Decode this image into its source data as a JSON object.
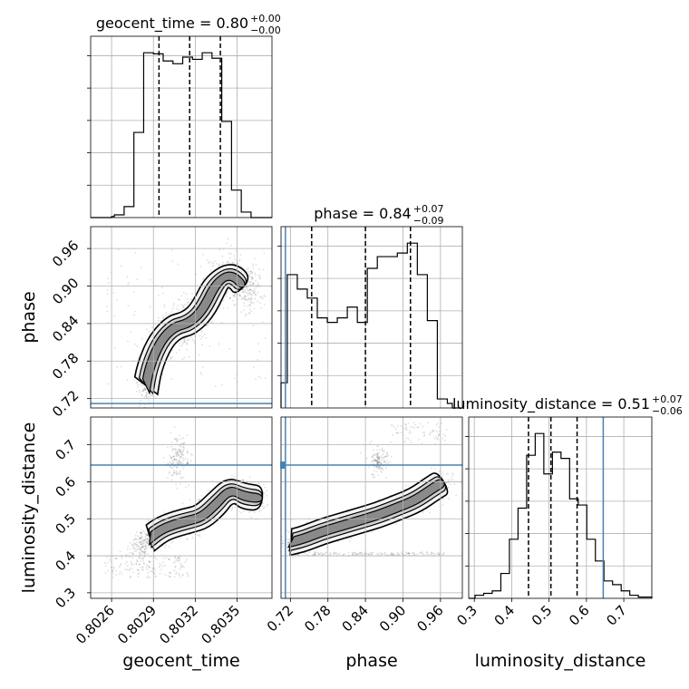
{
  "chart_data": {
    "type": "corner",
    "parameters": [
      "geocent_time",
      "phase",
      "luminosity_distance"
    ],
    "axis_labels": [
      "geocent_time",
      "phase",
      "luminosity_distance"
    ],
    "ranges": {
      "geocent_time": [
        0.80245,
        0.80375
      ],
      "phase": [
        0.705,
        0.995
      ],
      "luminosity_distance": [
        0.285,
        0.775
      ]
    },
    "ticks": {
      "geocent_time": [
        "0.8026",
        "0.8029",
        "0.8032",
        "0.8035"
      ],
      "phase": [
        "0.72",
        "0.78",
        "0.84",
        "0.90",
        "0.96"
      ],
      "luminosity_distance": [
        "0.3",
        "0.4",
        "0.5",
        "0.6",
        "0.7"
      ]
    },
    "tick_values": {
      "geocent_time": [
        0.8026,
        0.8029,
        0.8032,
        0.8035
      ],
      "phase": [
        0.72,
        0.78,
        0.84,
        0.9,
        0.96
      ],
      "luminosity_distance": [
        0.3,
        0.4,
        0.5,
        0.6,
        0.7
      ]
    },
    "titles": [
      {
        "param": "geocent_time",
        "text": "geocent_time = 0.80",
        "sup": "+0.00",
        "sub": "−0.00"
      },
      {
        "param": "phase",
        "text": "phase = 0.84",
        "sup": "+0.07",
        "sub": "−0.09"
      },
      {
        "param": "luminosity_distance",
        "text": "luminosity_distance = 0.51",
        "sup": "+0.07",
        "sub": "−0.06"
      }
    ],
    "quantiles": {
      "geocent_time": [
        0.80294,
        0.80316,
        0.80338
      ],
      "phase": [
        0.754,
        0.84,
        0.912
      ],
      "luminosity_distance": [
        0.445,
        0.505,
        0.575
      ]
    },
    "truth": {
      "geocent_time": null,
      "phase": 0.712,
      "luminosity_distance": 0.645
    },
    "truth_color": "#4682b4",
    "histograms": {
      "geocent_time": {
        "edges": [
          0.80245,
          0.8026,
          0.80262,
          0.80269,
          0.80276,
          0.80283,
          0.8029,
          0.80297,
          0.80304,
          0.80311,
          0.80318,
          0.80325,
          0.80332,
          0.80339,
          0.80346,
          0.80353,
          0.8036,
          0.80375
        ],
        "counts": [
          0,
          2,
          5,
          20,
          155,
          300,
          298,
          285,
          280,
          292,
          288,
          300,
          290,
          175,
          50,
          10,
          0
        ]
      },
      "phase": {
        "edges": [
          0.705,
          0.715,
          0.723,
          0.731,
          0.739,
          0.747,
          0.755,
          0.763,
          0.771,
          0.779,
          0.787,
          0.795,
          0.803,
          0.811,
          0.819,
          0.827,
          0.835,
          0.843,
          0.851,
          0.859,
          0.867,
          0.875,
          0.883,
          0.891,
          0.899,
          0.907,
          0.915,
          0.923,
          0.931,
          0.939,
          0.947,
          0.955,
          0.963,
          0.971,
          0.979,
          0.995
        ],
        "counts": [
          28,
          148,
          148,
          132,
          132,
          122,
          122,
          100,
          100,
          95,
          95,
          100,
          100,
          112,
          112,
          95,
          95,
          155,
          155,
          168,
          168,
          168,
          168,
          172,
          172,
          183,
          183,
          148,
          148,
          97,
          97,
          10,
          10,
          5,
          0
        ]
      },
      "luminosity_distance": {
        "edges": [
          0.285,
          0.302,
          0.325,
          0.348,
          0.371,
          0.394,
          0.417,
          0.44,
          0.463,
          0.486,
          0.509,
          0.532,
          0.555,
          0.578,
          0.601,
          0.624,
          0.647,
          0.67,
          0.693,
          0.716,
          0.739,
          0.775
        ],
        "counts": [
          0,
          5,
          8,
          12,
          40,
          95,
          145,
          230,
          265,
          200,
          235,
          225,
          160,
          150,
          95,
          60,
          28,
          22,
          12,
          5,
          2
        ]
      }
    },
    "scatter_shape": {
      "phase_vs_geocent_time": "S-curve from (0.8028, 0.72) through (0.8030, 0.84) to (0.8036, 0.93)",
      "luminosity_distance_vs_geocent_time": "S-curve from (0.8027, 0.36) through (0.8031, 0.49) to (0.8037, 0.56)",
      "luminosity_distance_vs_phase": "band from (0.72, 0.44) to (0.96, 0.60) with secondary branches"
    }
  }
}
